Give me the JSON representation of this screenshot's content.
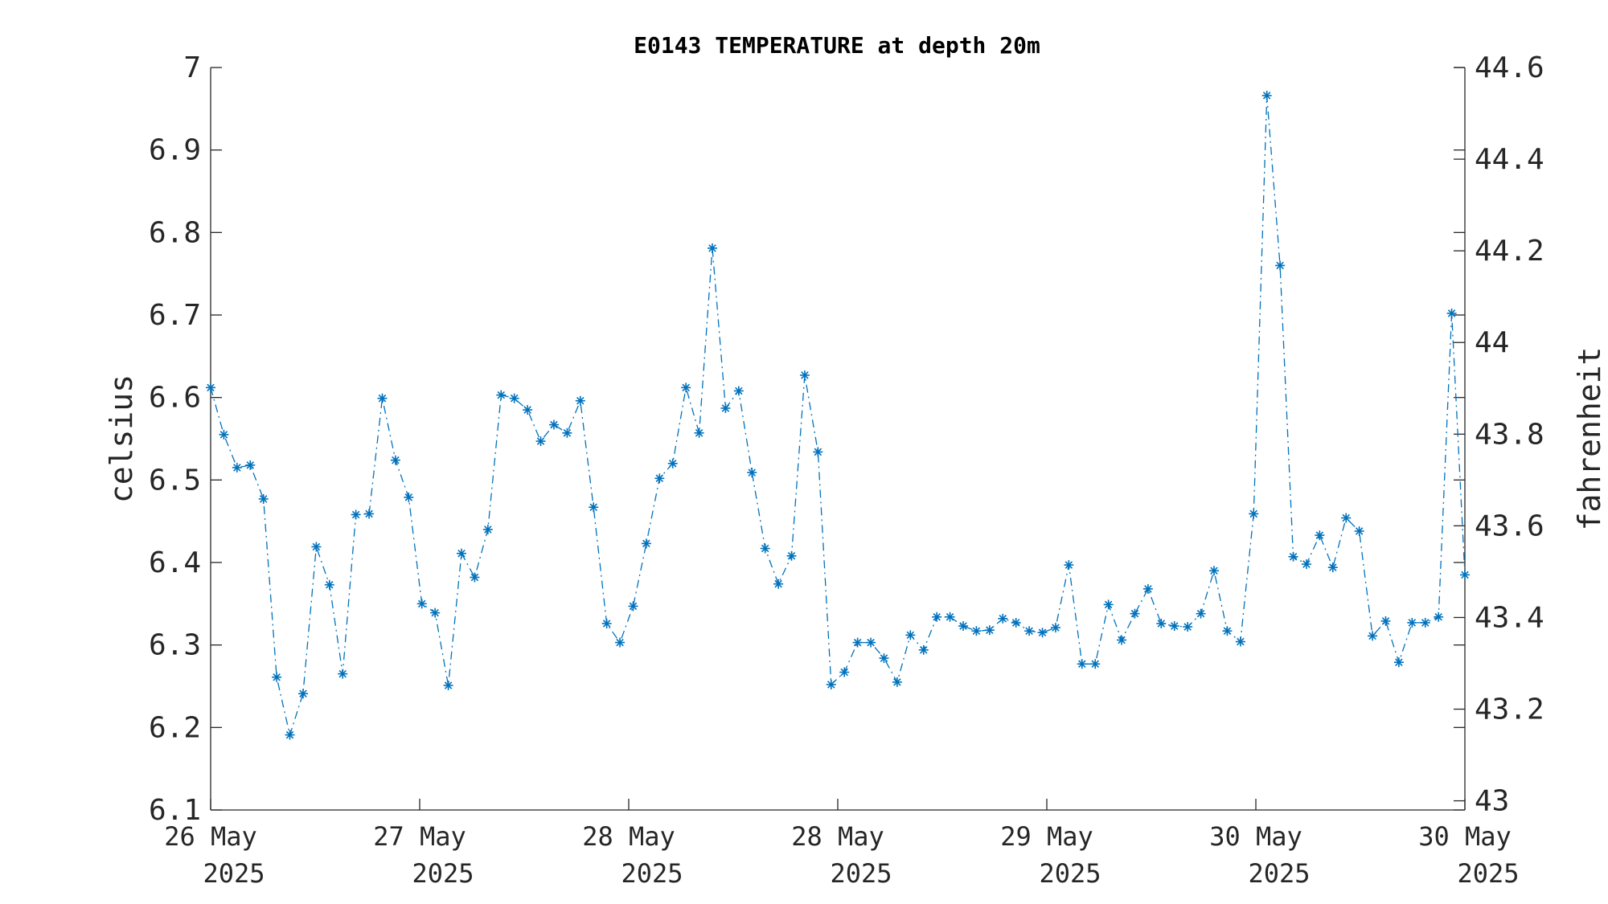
{
  "chart_data": {
    "type": "line",
    "title": "E0143 TEMPERATURE at depth 20m",
    "ylabel": "celsius",
    "ylabel_right": "fahrenheit",
    "ylim": [
      6.1,
      7.0
    ],
    "ylim_right": [
      42.98,
      44.6
    ],
    "yticks": [
      "6.1",
      "6.2",
      "6.3",
      "6.4",
      "6.5",
      "6.6",
      "6.7",
      "6.8",
      "6.9",
      "7"
    ],
    "yticks_right": [
      "43",
      "43.2",
      "43.4",
      "43.6",
      "43.8",
      "44",
      "44.2",
      "44.4",
      "44.6"
    ],
    "xticks": [
      {
        "day": "26 May",
        "year": "2025"
      },
      {
        "day": "27 May",
        "year": "2025"
      },
      {
        "day": "28 May",
        "year": "2025"
      },
      {
        "day": "28 May",
        "year": "2025"
      },
      {
        "day": "29 May",
        "year": "2025"
      },
      {
        "day": "30 May",
        "year": "2025"
      },
      {
        "day": "30 May",
        "year": "2025"
      }
    ],
    "grid": false,
    "line_style": "dash-dot",
    "marker": "asterisk",
    "color": "#0072BD",
    "series": [
      {
        "values": [
          6.612,
          6.555,
          6.515,
          6.518,
          6.477,
          6.261,
          6.191,
          6.241,
          6.419,
          6.373,
          6.265,
          6.458,
          6.459,
          6.599,
          6.524,
          6.479,
          6.35,
          6.339,
          6.251,
          6.411,
          6.382,
          6.44,
          6.603,
          6.599,
          6.585,
          6.547,
          6.567,
          6.557,
          6.596,
          6.467,
          6.326,
          6.303,
          6.347,
          6.423,
          6.502,
          6.52,
          6.612,
          6.557,
          6.781,
          6.587,
          6.608,
          6.509,
          6.417,
          6.374,
          6.408,
          6.627,
          6.534,
          6.252,
          6.267,
          6.303,
          6.303,
          6.284,
          6.255,
          6.312,
          6.294,
          6.334,
          6.334,
          6.323,
          6.317,
          6.318,
          6.332,
          6.327,
          6.317,
          6.315,
          6.321,
          6.397,
          6.277,
          6.277,
          6.349,
          6.306,
          6.338,
          6.368,
          6.326,
          6.323,
          6.322,
          6.338,
          6.39,
          6.317,
          6.304,
          6.459,
          6.966,
          6.76,
          6.407,
          6.398,
          6.433,
          6.394,
          6.454,
          6.438,
          6.311,
          6.329,
          6.279,
          6.327,
          6.327,
          6.334,
          6.702,
          6.385
        ]
      }
    ]
  }
}
